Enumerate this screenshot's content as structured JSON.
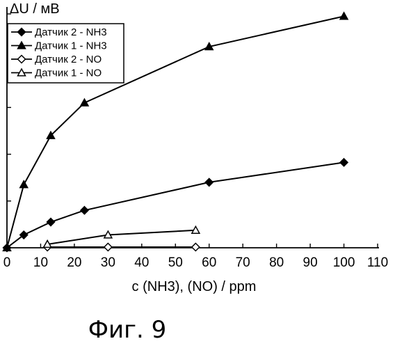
{
  "chart_data": {
    "type": "line",
    "title": "",
    "xlabel": "c (NH3), (NO) / ppm",
    "ylabel": "ΔU / мВ",
    "xlim": [
      0,
      110
    ],
    "ylim": [
      0,
      100
    ],
    "x_ticks": [
      "0",
      "10",
      "20",
      "30",
      "40",
      "50",
      "60",
      "70",
      "80",
      "90",
      "100",
      "110"
    ],
    "grid": false,
    "legend_position": "top-left",
    "series": [
      {
        "name": "Датчик 2 - NH3",
        "marker": "diamond-filled",
        "x": [
          0,
          5,
          13,
          23,
          60,
          100
        ],
        "y": [
          0,
          5.5,
          11,
          16,
          28,
          36.5
        ]
      },
      {
        "name": "Датчик 1 - NH3",
        "marker": "triangle-filled",
        "x": [
          0,
          5,
          13,
          23,
          60,
          100
        ],
        "y": [
          0,
          27,
          48,
          62,
          86,
          99
        ]
      },
      {
        "name": "Датчик 2 - NO",
        "marker": "diamond-open",
        "x": [
          12,
          30,
          56
        ],
        "y": [
          0.3,
          0.3,
          0.3
        ]
      },
      {
        "name": "Датчик 1 - NO",
        "marker": "triangle-open",
        "x": [
          12,
          30,
          56
        ],
        "y": [
          1.5,
          5.5,
          7.5
        ]
      }
    ]
  },
  "figure_caption": "Фиг. 9"
}
